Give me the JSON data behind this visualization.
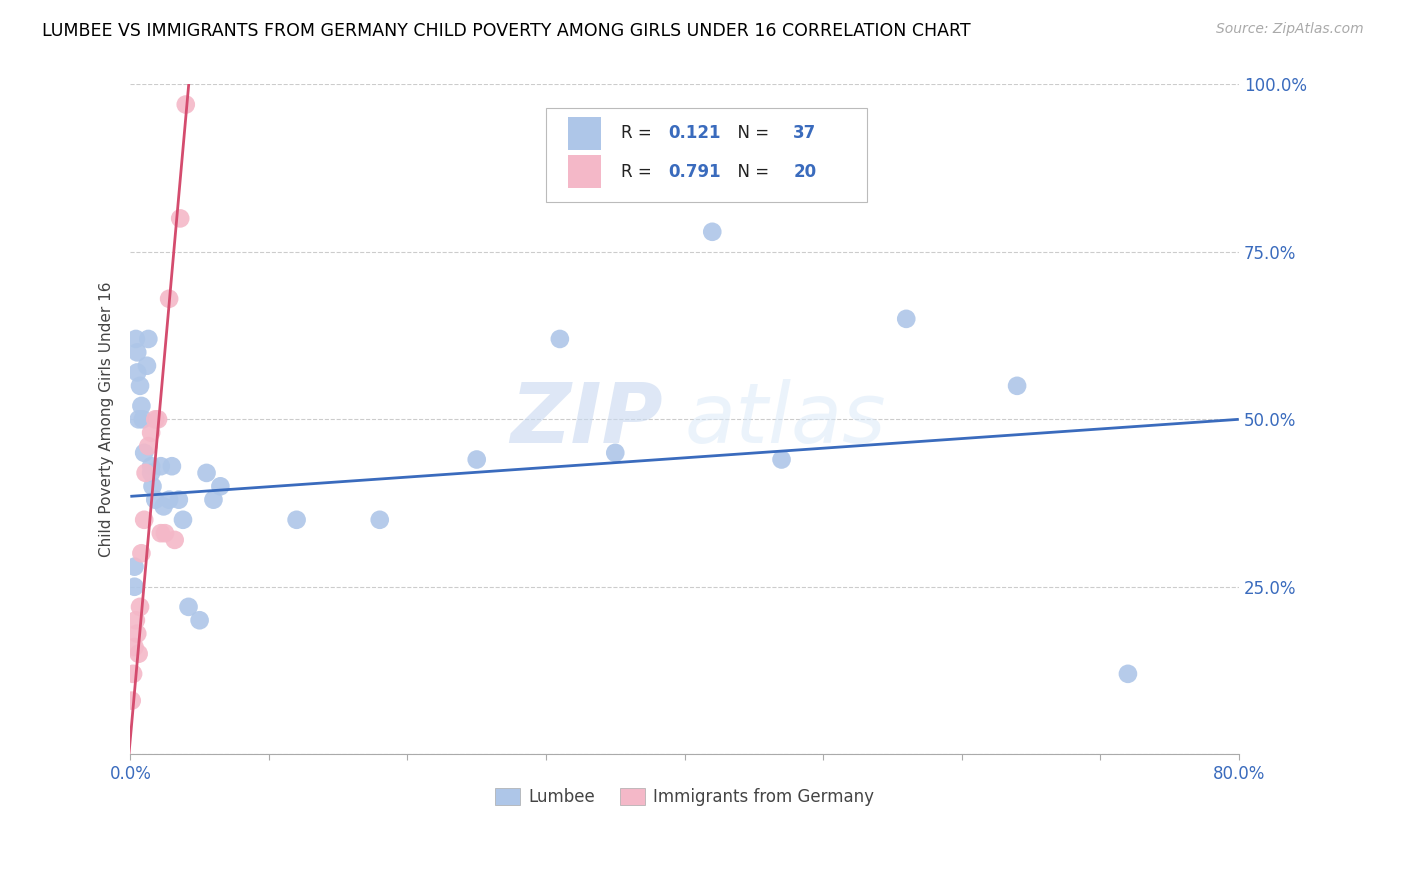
{
  "title": "LUMBEE VS IMMIGRANTS FROM GERMANY CHILD POVERTY AMONG GIRLS UNDER 16 CORRELATION CHART",
  "source": "Source: ZipAtlas.com",
  "ylabel": "Child Poverty Among Girls Under 16",
  "xlim": [
    0,
    0.8
  ],
  "ylim": [
    0,
    1.0
  ],
  "xticks": [
    0.0,
    0.1,
    0.2,
    0.3,
    0.4,
    0.5,
    0.6,
    0.7,
    0.8
  ],
  "xticklabels": [
    "0.0%",
    "",
    "",
    "",
    "",
    "",
    "",
    "",
    "80.0%"
  ],
  "yticks": [
    0.0,
    0.25,
    0.5,
    0.75,
    1.0
  ],
  "yticklabels": [
    "",
    "25.0%",
    "50.0%",
    "75.0%",
    "100.0%"
  ],
  "legend1_r": "0.121",
  "legend1_n": "37",
  "legend2_r": "0.791",
  "legend2_n": "20",
  "lumbee_color": "#aec6e8",
  "germany_color": "#f4b8c8",
  "lumbee_line_color": "#3a6bbd",
  "germany_line_color": "#d44c6e",
  "watermark_zip": "ZIP",
  "watermark_atlas": "atlas",
  "lumbee_x": [
    0.003,
    0.003,
    0.004,
    0.005,
    0.005,
    0.006,
    0.007,
    0.008,
    0.009,
    0.01,
    0.012,
    0.013,
    0.015,
    0.015,
    0.016,
    0.018,
    0.022,
    0.024,
    0.028,
    0.03,
    0.035,
    0.038,
    0.042,
    0.05,
    0.055,
    0.06,
    0.065,
    0.12,
    0.18,
    0.35,
    0.42,
    0.56,
    0.64,
    0.72,
    0.25,
    0.31,
    0.47
  ],
  "lumbee_y": [
    0.28,
    0.25,
    0.62,
    0.6,
    0.57,
    0.5,
    0.55,
    0.52,
    0.5,
    0.45,
    0.58,
    0.62,
    0.42,
    0.43,
    0.4,
    0.38,
    0.43,
    0.37,
    0.38,
    0.43,
    0.38,
    0.35,
    0.22,
    0.2,
    0.42,
    0.38,
    0.4,
    0.35,
    0.35,
    0.45,
    0.78,
    0.65,
    0.55,
    0.12,
    0.44,
    0.62,
    0.44
  ],
  "germany_x": [
    0.001,
    0.002,
    0.003,
    0.004,
    0.005,
    0.006,
    0.007,
    0.008,
    0.01,
    0.011,
    0.013,
    0.015,
    0.018,
    0.02,
    0.022,
    0.025,
    0.028,
    0.032,
    0.036,
    0.04
  ],
  "germany_y": [
    0.08,
    0.12,
    0.16,
    0.2,
    0.18,
    0.15,
    0.22,
    0.3,
    0.35,
    0.42,
    0.46,
    0.48,
    0.5,
    0.5,
    0.33,
    0.33,
    0.68,
    0.32,
    0.8,
    0.97
  ],
  "lumbee_trend_x": [
    0.0,
    0.8
  ],
  "lumbee_trend_y": [
    0.385,
    0.5
  ],
  "germany_trend_x": [
    -0.001,
    0.043
  ],
  "germany_trend_y": [
    0.0,
    1.02
  ]
}
